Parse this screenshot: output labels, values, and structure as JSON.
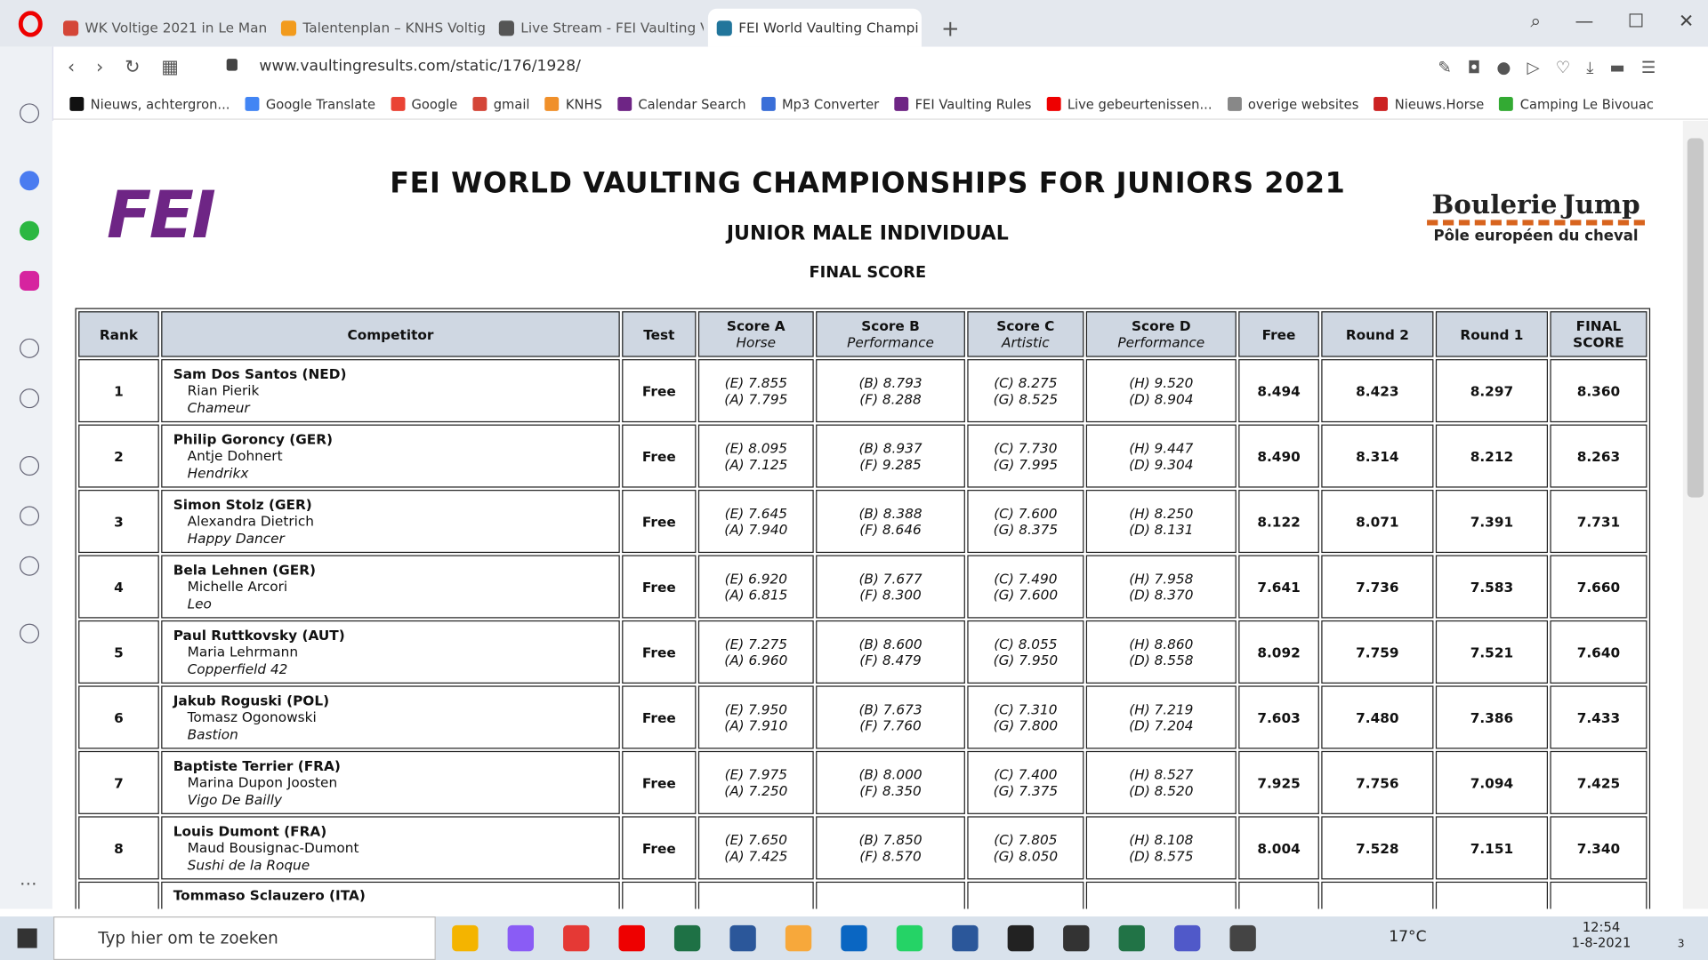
{
  "browser": {
    "tabs": [
      "WK Voltige 2021 in Le Man",
      "Talentenplan – KNHS Voltig",
      "Live Stream - FEI Vaulting V",
      "FEI World Vaulting Champi"
    ],
    "url": "www.vaultingresults.com/static/176/1928/",
    "bookmarks": [
      "Nieuws, achtergron...",
      "Google Translate",
      "Google",
      "gmail",
      "KNHS",
      "Calendar Search",
      "Mp3 Converter",
      "FEI Vaulting Rules",
      "Live gebeurtenissen...",
      "overige websites",
      "Nieuws.Horse",
      "Camping Le Bivouac"
    ]
  },
  "page": {
    "title": "FEI WORLD VAULTING CHAMPIONSHIPS FOR JUNIORS 2021",
    "subtitle": "JUNIOR MALE INDIVIDUAL",
    "section": "FINAL SCORE",
    "logo_left": "FEI",
    "logo_right": {
      "word1": "Boulerie",
      "word2": "Jump",
      "tagline": "Pôle européen du cheval"
    }
  },
  "table": {
    "headers": [
      {
        "title": "Rank"
      },
      {
        "title": "Competitor"
      },
      {
        "title": "Test"
      },
      {
        "title": "Score A",
        "sub": "Horse"
      },
      {
        "title": "Score B",
        "sub": "Performance"
      },
      {
        "title": "Score C",
        "sub": "Artistic"
      },
      {
        "title": "Score D",
        "sub": "Performance"
      },
      {
        "title": "Free"
      },
      {
        "title": "Round 2"
      },
      {
        "title": "Round 1"
      },
      {
        "title": "FINAL SCORE"
      }
    ],
    "rows": [
      [
        "1",
        "Sam Dos Santos (NED)",
        "Rian Pierik",
        "Chameur",
        "Free",
        [
          "(E) 7.855",
          "(A) 7.795"
        ],
        [
          "(B) 8.793",
          "(F) 8.288"
        ],
        [
          "(C) 8.275",
          "(G) 8.525"
        ],
        [
          "(H) 9.520",
          "(D) 8.904"
        ],
        "8.494",
        "8.423",
        "8.297",
        "8.360"
      ],
      [
        "2",
        "Philip Goroncy (GER)",
        "Antje Dohnert",
        "Hendrikx",
        "Free",
        [
          "(E) 8.095",
          "(A) 7.125"
        ],
        [
          "(B) 8.937",
          "(F) 9.285"
        ],
        [
          "(C) 7.730",
          "(G) 7.995"
        ],
        [
          "(H) 9.447",
          "(D) 9.304"
        ],
        "8.490",
        "8.314",
        "8.212",
        "8.263"
      ],
      [
        "3",
        "Simon Stolz (GER)",
        "Alexandra Dietrich",
        "Happy Dancer",
        "Free",
        [
          "(E) 7.645",
          "(A) 7.940"
        ],
        [
          "(B) 8.388",
          "(F) 8.646"
        ],
        [
          "(C) 7.600",
          "(G) 8.375"
        ],
        [
          "(H) 8.250",
          "(D) 8.131"
        ],
        "8.122",
        "8.071",
        "7.391",
        "7.731"
      ],
      [
        "4",
        "Bela Lehnen (GER)",
        "Michelle Arcori",
        "Leo",
        "Free",
        [
          "(E) 6.920",
          "(A) 6.815"
        ],
        [
          "(B) 7.677",
          "(F) 8.300"
        ],
        [
          "(C) 7.490",
          "(G) 7.600"
        ],
        [
          "(H) 7.958",
          "(D) 8.370"
        ],
        "7.641",
        "7.736",
        "7.583",
        "7.660"
      ],
      [
        "5",
        "Paul Ruttkovsky (AUT)",
        "Maria Lehrmann",
        "Copperfield 42",
        "Free",
        [
          "(E) 7.275",
          "(A) 6.960"
        ],
        [
          "(B) 8.600",
          "(F) 8.479"
        ],
        [
          "(C) 8.055",
          "(G) 7.950"
        ],
        [
          "(H) 8.860",
          "(D) 8.558"
        ],
        "8.092",
        "7.759",
        "7.521",
        "7.640"
      ],
      [
        "6",
        "Jakub Roguski (POL)",
        "Tomasz Ogonowski",
        "Bastion",
        "Free",
        [
          "(E) 7.950",
          "(A) 7.910"
        ],
        [
          "(B) 7.673",
          "(F) 7.760"
        ],
        [
          "(C) 7.310",
          "(G) 7.800"
        ],
        [
          "(H) 7.219",
          "(D) 7.204"
        ],
        "7.603",
        "7.480",
        "7.386",
        "7.433"
      ],
      [
        "7",
        "Baptiste Terrier (FRA)",
        "Marina Dupon Joosten",
        "Vigo De Bailly",
        "Free",
        [
          "(E) 7.975",
          "(A) 7.250"
        ],
        [
          "(B) 8.000",
          "(F) 8.350"
        ],
        [
          "(C) 7.400",
          "(G) 7.375"
        ],
        [
          "(H) 8.527",
          "(D) 8.520"
        ],
        "7.925",
        "7.756",
        "7.094",
        "7.425"
      ],
      [
        "8",
        "Louis Dumont (FRA)",
        "Maud Bousignac-Dumont",
        "Sushi de la Roque",
        "Free",
        [
          "(E) 7.650",
          "(A) 7.425"
        ],
        [
          "(B) 7.850",
          "(F) 8.570"
        ],
        [
          "(C) 7.805",
          "(G) 8.050"
        ],
        [
          "(H) 8.108",
          "(D) 8.575"
        ],
        "8.004",
        "7.528",
        "7.151",
        "7.340"
      ]
    ],
    "partial_row": {
      "competitor": "Tommaso Sclauzero (ITA)"
    }
  },
  "taskbar": {
    "search": "Typ hier om te zoeken",
    "temperature": "17°C",
    "time": "12:54",
    "date": "1-8-2021",
    "notifications": "3"
  }
}
